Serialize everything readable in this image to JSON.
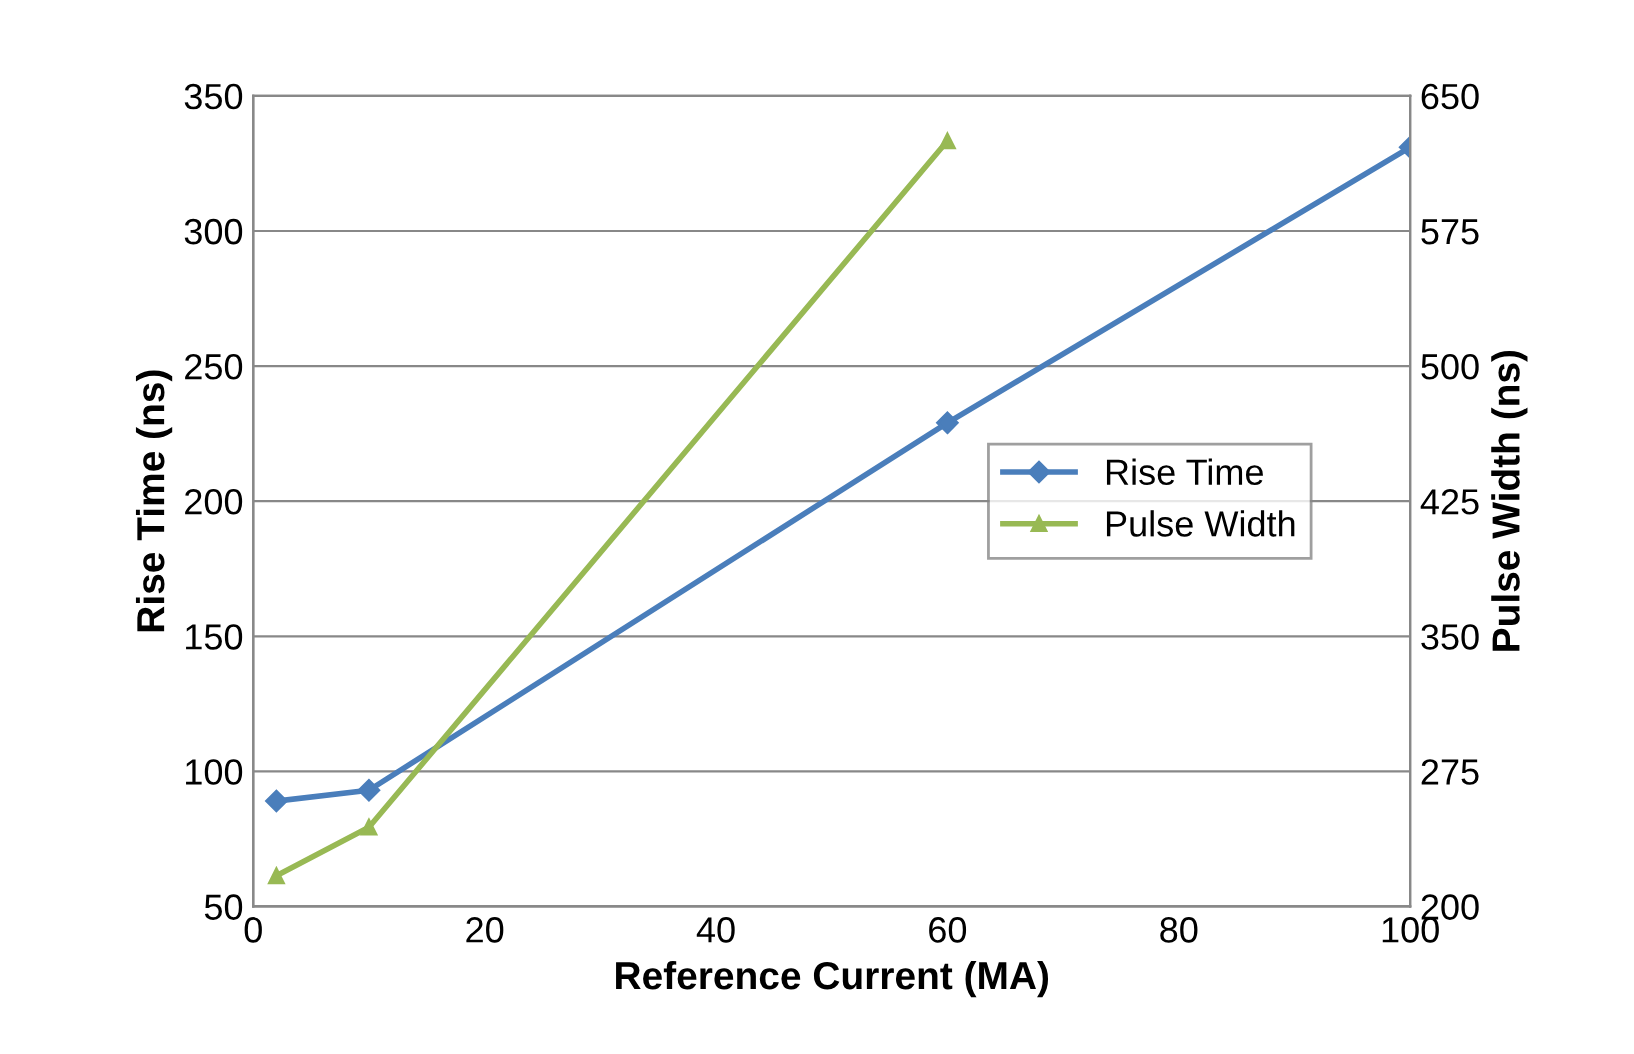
{
  "chart_data": {
    "type": "line",
    "xlabel": "Reference Current (MA)",
    "ylabel": "Rise Time (ns)",
    "y2label": "Pulse Width (ns)",
    "xlim": [
      0,
      100
    ],
    "xticks": [
      0,
      20,
      40,
      60,
      80,
      100
    ],
    "ylim": [
      50,
      350
    ],
    "yticks": [
      50,
      100,
      150,
      200,
      250,
      300,
      350
    ],
    "y2lim": [
      200,
      650
    ],
    "y2ticks": [
      200,
      275,
      350,
      425,
      500,
      575,
      650
    ],
    "grid": "y",
    "legend": "right",
    "series": [
      {
        "name": "Rise Time",
        "color": "#4a7ebb",
        "marker": "diamond",
        "x": [
          2,
          10,
          60,
          100
        ],
        "values": [
          89,
          93,
          229,
          331
        ]
      },
      {
        "name": "Pulse Width",
        "color": "#98b954",
        "marker": "triangle",
        "axis": "y2",
        "x": [
          2,
          10,
          60
        ],
        "values": [
          217,
          244,
          625
        ]
      }
    ]
  }
}
